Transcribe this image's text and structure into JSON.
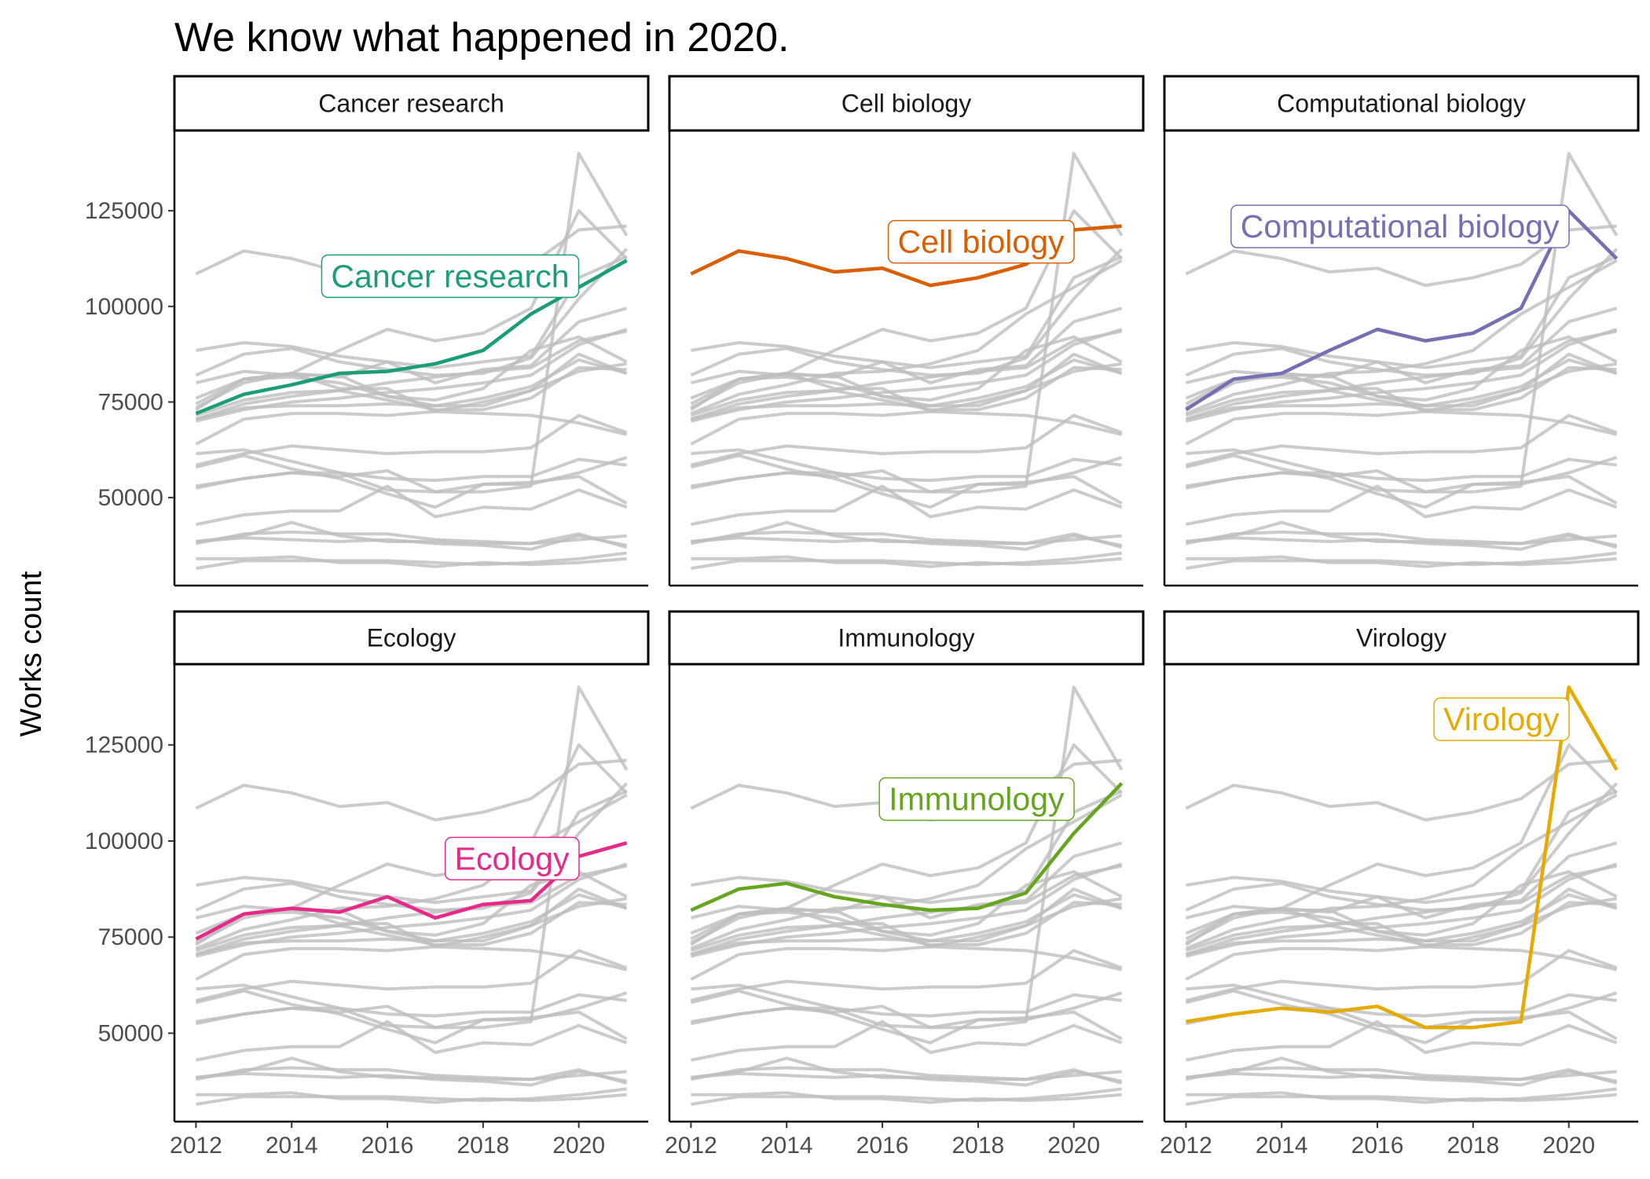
{
  "chart_data": {
    "type": "line",
    "title": "We know what happened in 2020.",
    "xlabel": "",
    "ylabel": "Works count",
    "x": [
      2012,
      2013,
      2014,
      2015,
      2016,
      2017,
      2018,
      2019,
      2020,
      2021
    ],
    "xticks": [
      "2012",
      "2014",
      "2016",
      "2018",
      "2020"
    ],
    "yticks": [
      "50000",
      "75000",
      "100000",
      "125000"
    ],
    "ylim": [
      27000,
      146000
    ],
    "xlim": [
      2011.55,
      2021.45
    ],
    "facets": [
      {
        "title": "Cancer research",
        "series": "Cancer research",
        "color": "#1B9E77",
        "label": "Cancer research"
      },
      {
        "title": "Cell biology",
        "series": "Cell biology",
        "color": "#D95F02",
        "label": "Cell biology"
      },
      {
        "title": "Computational biology",
        "series": "Computational biology",
        "color": "#7570B3",
        "label": "Computational biology"
      },
      {
        "title": "Ecology",
        "series": "Ecology",
        "color": "#E7298A",
        "label": "Ecology"
      },
      {
        "title": "Immunology",
        "series": "Immunology",
        "color": "#66A61E",
        "label": "Immunology"
      },
      {
        "title": "Virology",
        "series": "Virology",
        "color": "#E6AB02",
        "label": "Virology"
      }
    ],
    "background_color": "#BEBEBE",
    "series": [
      {
        "name": "Cancer research",
        "values": [
          72000,
          77000,
          79500,
          82500,
          83000,
          85000,
          88500,
          98000,
          105000,
          112000
        ]
      },
      {
        "name": "Cell biology",
        "values": [
          108500,
          114500,
          112500,
          109000,
          110000,
          105500,
          107500,
          111000,
          120000,
          121000
        ]
      },
      {
        "name": "Computational biology",
        "values": [
          73000,
          81000,
          82500,
          88500,
          94000,
          91000,
          93000,
          99500,
          125000,
          112500
        ]
      },
      {
        "name": "Ecology",
        "values": [
          74500,
          81000,
          82500,
          81500,
          85500,
          80000,
          83500,
          84500,
          96000,
          99500
        ]
      },
      {
        "name": "Immunology",
        "values": [
          82000,
          87500,
          89000,
          85500,
          83500,
          82000,
          82500,
          86500,
          102000,
          115000
        ]
      },
      {
        "name": "Virology",
        "values": [
          53000,
          55000,
          56500,
          55500,
          57000,
          51500,
          51500,
          53000,
          140000,
          118500
        ]
      },
      {
        "name": "",
        "values": [
          88500,
          90500,
          89500,
          87000,
          85500,
          84000,
          85500,
          87000,
          107500,
          113000
        ]
      },
      {
        "name": "",
        "values": [
          70500,
          74500,
          76500,
          78000,
          80000,
          81500,
          83000,
          84000,
          91000,
          93500
        ]
      },
      {
        "name": "",
        "values": [
          70000,
          73000,
          75000,
          76000,
          77500,
          78500,
          80000,
          82000,
          90000,
          94000
        ]
      },
      {
        "name": "",
        "values": [
          76000,
          81000,
          81500,
          80000,
          76500,
          74000,
          76000,
          79000,
          86000,
          82500
        ]
      },
      {
        "name": "",
        "values": [
          71500,
          75500,
          77500,
          78000,
          75500,
          73000,
          73000,
          76000,
          84000,
          83500
        ]
      },
      {
        "name": "",
        "values": [
          73500,
          80000,
          82500,
          78500,
          78500,
          72500,
          75000,
          78000,
          83000,
          85000
        ]
      },
      {
        "name": "",
        "values": [
          80000,
          83000,
          82000,
          82000,
          76500,
          75500,
          78500,
          88500,
          92000,
          85500
        ]
      },
      {
        "name": "",
        "values": [
          70500,
          73500,
          74000,
          74000,
          74500,
          74000,
          74000,
          78000,
          87500,
          82500
        ]
      },
      {
        "name": "",
        "values": [
          64000,
          70500,
          72000,
          72000,
          71500,
          72500,
          72000,
          71500,
          69500,
          66500
        ]
      },
      {
        "name": "",
        "values": [
          58500,
          61500,
          63500,
          62500,
          61500,
          62000,
          62000,
          63000,
          71500,
          67000
        ]
      },
      {
        "name": "",
        "values": [
          61500,
          62500,
          59500,
          56500,
          55000,
          54500,
          55500,
          55500,
          60000,
          58500
        ]
      },
      {
        "name": "",
        "values": [
          58000,
          61000,
          57500,
          55000,
          51000,
          47500,
          53500,
          53500,
          56500,
          60500
        ]
      },
      {
        "name": "",
        "values": [
          52500,
          55000,
          56500,
          56500,
          52000,
          51500,
          53500,
          54000,
          55500,
          48500
        ]
      },
      {
        "name": "",
        "values": [
          43000,
          45500,
          46500,
          46500,
          53000,
          45000,
          47500,
          47000,
          52000,
          47500
        ]
      },
      {
        "name": "",
        "values": [
          38500,
          40000,
          43500,
          40000,
          38500,
          38500,
          38000,
          38000,
          39000,
          40000
        ]
      },
      {
        "name": "",
        "values": [
          38000,
          40500,
          41000,
          40500,
          40500,
          39000,
          38500,
          38000,
          40500,
          37000
        ]
      },
      {
        "name": "",
        "values": [
          38500,
          39500,
          39000,
          38500,
          39000,
          38000,
          37500,
          36500,
          40000,
          37500
        ]
      },
      {
        "name": "",
        "values": [
          31500,
          33500,
          33500,
          33500,
          33500,
          33000,
          32500,
          33000,
          34000,
          35500
        ]
      },
      {
        "name": "",
        "values": [
          34000,
          34000,
          34500,
          33000,
          33000,
          32000,
          33000,
          32500,
          33000,
          34000
        ]
      }
    ]
  }
}
